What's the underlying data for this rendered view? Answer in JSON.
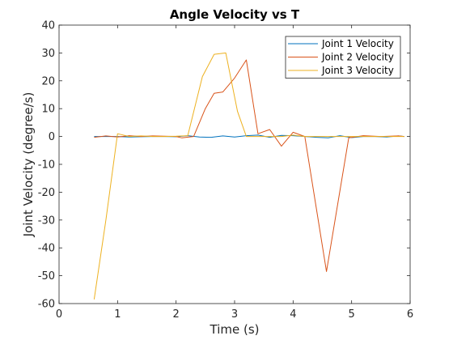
{
  "chart_data": {
    "type": "line",
    "title": "Angle Velocity vs T",
    "xlabel": "Time (s)",
    "ylabel": "Joint Velocity (degree/s)",
    "xlim": [
      0,
      6
    ],
    "ylim": [
      -60,
      40
    ],
    "xticks": [
      0,
      1,
      2,
      3,
      4,
      5,
      6
    ],
    "yticks": [
      40,
      30,
      20,
      10,
      0,
      -10,
      -20,
      -30,
      -40,
      -50,
      -60
    ],
    "grid": false,
    "legend_position": "top-right",
    "series": [
      {
        "name": "Joint 1 Velocity",
        "color": "#0072BD",
        "x": [
          0.6,
          0.8,
          1.0,
          1.2,
          1.4,
          1.6,
          1.8,
          2.0,
          2.2,
          2.4,
          2.6,
          2.8,
          3.0,
          3.2,
          3.4,
          3.6,
          3.8,
          4.0,
          4.2,
          4.4,
          4.6,
          4.8,
          5.0,
          5.2,
          5.4,
          5.6,
          5.8,
          5.9
        ],
        "y": [
          0,
          0,
          0,
          -0.2,
          -0.1,
          0,
          0,
          -0.1,
          0.3,
          -0.2,
          -0.3,
          0.2,
          -0.2,
          0.3,
          0.5,
          -0.3,
          0.4,
          0.3,
          0,
          -0.3,
          -0.5,
          0.3,
          -0.4,
          0,
          0,
          -0.2,
          0.2,
          0
        ]
      },
      {
        "name": "Joint 2 Velocity",
        "color": "#D95319",
        "x": [
          0.6,
          0.8,
          1.0,
          1.2,
          1.4,
          1.6,
          2.0,
          2.1,
          2.3,
          2.5,
          2.65,
          2.8,
          3.0,
          3.2,
          3.4,
          3.6,
          3.8,
          4.0,
          4.2,
          4.57,
          4.95,
          5.2,
          5.5,
          5.8,
          5.9
        ],
        "y": [
          -0.3,
          0.2,
          -0.2,
          0.3,
          0,
          0.2,
          0,
          -0.5,
          0,
          10,
          15.5,
          16,
          21,
          27.5,
          1,
          2.5,
          -3.5,
          1.5,
          0,
          -48.5,
          -0.5,
          0.3,
          0,
          0.2,
          0
        ]
      },
      {
        "name": "Joint 3 Velocity",
        "color": "#EDB120",
        "x": [
          0.6,
          0.8,
          1.0,
          1.2,
          1.4,
          1.6,
          1.8,
          2.0,
          2.2,
          2.45,
          2.65,
          2.85,
          3.05,
          3.2,
          3.4,
          3.6,
          3.8,
          4.0,
          4.2,
          4.6,
          4.8,
          5.0,
          5.2,
          5.5,
          5.8,
          5.9
        ],
        "y": [
          -58.5,
          -30,
          1,
          0,
          0.2,
          0,
          0,
          0.1,
          0.3,
          21.5,
          29.5,
          30,
          9,
          0,
          0,
          0,
          0,
          0.5,
          0,
          0,
          0,
          0,
          0,
          0,
          0,
          0
        ]
      }
    ]
  }
}
